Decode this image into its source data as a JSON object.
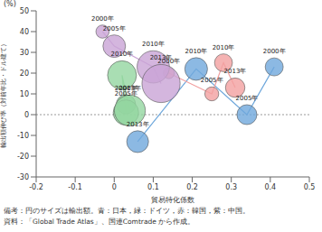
{
  "chart_data": {
    "type": "scatter",
    "xlabel": "貿易特化係数",
    "ylabel": "輸出額伸び率（対前年比・ドル建て）",
    "yunit": "(%)",
    "xlim": [
      -0.2,
      0.5
    ],
    "xticks": [
      -0.2,
      -0.1,
      0,
      0.1,
      0.2,
      0.3,
      0.4,
      0.5
    ],
    "ylim": [
      -30,
      50
    ],
    "yticks": [
      -30,
      -20,
      -10,
      0,
      10,
      20,
      30,
      40,
      50
    ],
    "grid": false,
    "marker": "bubble",
    "series": [
      {
        "name": "日本",
        "color": "#6fa8dc",
        "x": [
          0.41,
          0.34,
          0.21,
          0.06
        ],
        "values": [
          23,
          0,
          22,
          -13
        ],
        "size": [
          4.8,
          5.9,
          7.7,
          7.1
        ],
        "labels": [
          "2000年",
          "2005年",
          "2010年",
          "2013年"
        ]
      },
      {
        "name": "ドイツ",
        "color": "#93d6a0",
        "x": [
          0.03,
          0.03,
          0.02,
          0.04
        ],
        "values": [
          5,
          1,
          19,
          2
        ],
        "size": [
          5.5,
          9.7,
          12.6,
          14.5
        ],
        "labels": [
          "2000年",
          "2005年",
          "2010年",
          "2013年"
        ]
      },
      {
        "name": "韓国",
        "color": "#f2a0a0",
        "x": [
          0.14,
          0.25,
          0.28,
          0.31
        ],
        "values": [
          20,
          10,
          25,
          13
        ],
        "size": [
          1.7,
          2.8,
          4.7,
          5.6
        ],
        "labels": [
          "2000年",
          "2005年",
          "2010年",
          "2013年"
        ]
      },
      {
        "name": "中国",
        "color": "#c9a4d6",
        "x": [
          -0.03,
          0.0,
          0.1,
          0.12
        ],
        "values": [
          40,
          33,
          23,
          15
        ],
        "size": [
          2.5,
          7.6,
          15.8,
          22.1
        ],
        "labels": [
          "2000年",
          "2005年",
          "2010年",
          "2013年"
        ]
      }
    ],
    "notes": [
      "備考：円のサイズは輸出額。青：日本，緑：ドイツ，赤：韓国，紫：中国。",
      "資料：「Global Trade Atlas」、国連Comtrade から作成。"
    ]
  }
}
